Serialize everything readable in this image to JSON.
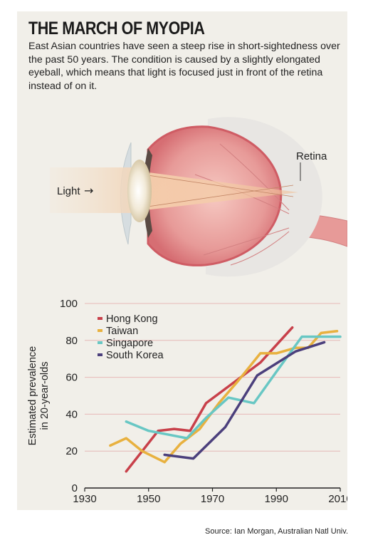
{
  "title": "THE MARCH OF MYOPIA",
  "intro": "East Asian countries have seen a steep rise in short-sightedness over the past 50 years. The condition is caused by a slightly elongated eyeball, which means that light is focused just in front of the retina instead of on it.",
  "diagram": {
    "light_label": "Light",
    "light_arrow": "→",
    "retina_label": "Retina"
  },
  "source": "Source: Ian Morgan, Australian Natl Univ.",
  "colors": {
    "hong_kong": "#c8404a",
    "taiwan": "#e8b13f",
    "singapore": "#68c7c4",
    "south_korea": "#4b3f7c",
    "gridline": "#e6b8b8"
  },
  "chart_data": {
    "type": "line",
    "title": "",
    "xlabel": "",
    "ylabel": "Estimated prevalence in 20-year-olds",
    "ylabel_lines": [
      "Estimated prevalence",
      "in 20-year-olds"
    ],
    "xlim": [
      1930,
      2010
    ],
    "ylim": [
      0,
      100
    ],
    "x_ticks": [
      "1930",
      "1950",
      "1970",
      "1990",
      "2010"
    ],
    "y_ticks": [
      "0",
      "20",
      "40",
      "60",
      "80",
      "100"
    ],
    "grid": true,
    "legend_position": "top-left",
    "series": [
      {
        "name": "Hong Kong",
        "color": "#c8404a",
        "x": [
          1943,
          1948,
          1953,
          1958,
          1963,
          1968,
          1975,
          1985,
          1995
        ],
        "y": [
          9,
          20,
          31,
          32,
          31,
          46,
          55,
          68,
          87
        ]
      },
      {
        "name": "Taiwan",
        "color": "#e8b13f",
        "x": [
          1938,
          1943,
          1948,
          1955,
          1960,
          1966,
          1972,
          1978,
          1985,
          1990,
          1996,
          2000,
          2004,
          2009
        ],
        "y": [
          23,
          27,
          20,
          14,
          24,
          32,
          46,
          58,
          73,
          73,
          76,
          76,
          84,
          85
        ]
      },
      {
        "name": "Singapore",
        "color": "#68c7c4",
        "x": [
          1943,
          1950,
          1962,
          1968,
          1975,
          1983,
          1990,
          1998,
          2005,
          2010
        ],
        "y": [
          36,
          31,
          27,
          38,
          49,
          46,
          63,
          82,
          82,
          82
        ]
      },
      {
        "name": "South Korea",
        "color": "#4b3f7c",
        "x": [
          1955,
          1964,
          1974,
          1984,
          1996,
          2005
        ],
        "y": [
          18,
          16,
          33,
          61,
          74,
          79
        ]
      }
    ]
  }
}
